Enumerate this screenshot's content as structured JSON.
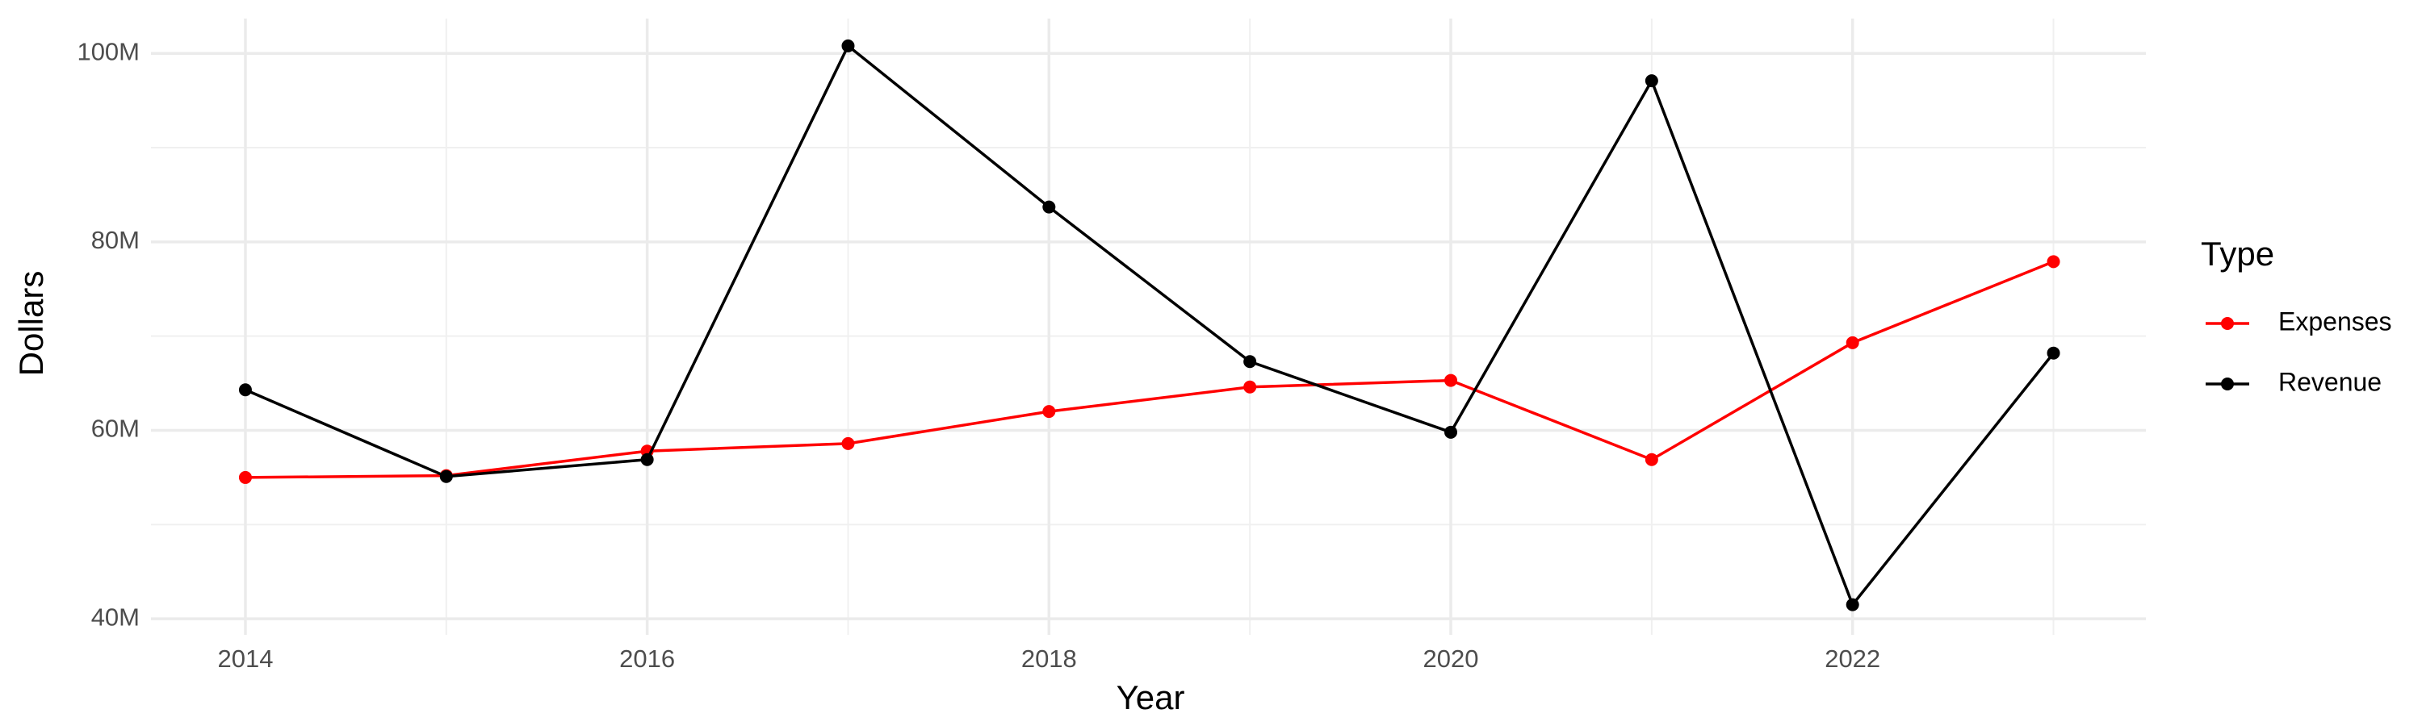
{
  "chart_data": {
    "type": "line",
    "x_label": "Year",
    "y_label": "Dollars",
    "legend_title": "Type",
    "x": [
      2014,
      2015,
      2016,
      2017,
      2018,
      2019,
      2020,
      2021,
      2022,
      2023
    ],
    "series": [
      {
        "name": "Expenses",
        "color": "#ff0000",
        "values": [
          55000000,
          55200000,
          57800000,
          58600000,
          62000000,
          64600000,
          65300000,
          56900000,
          69300000,
          77900000
        ]
      },
      {
        "name": "Revenue",
        "color": "#000000",
        "values": [
          64300000,
          55100000,
          56900000,
          100800000,
          83700000,
          67300000,
          59800000,
          97100000,
          41500000,
          68200000
        ]
      }
    ],
    "xlim": [
      2013.53,
      2023.46
    ],
    "xticks": [
      2014,
      2016,
      2018,
      2020,
      2022
    ],
    "ylim": [
      38300000,
      103700000
    ],
    "yticks": [
      {
        "value": 40000000,
        "label": "40M"
      },
      {
        "value": 60000000,
        "label": "60M"
      },
      {
        "value": 80000000,
        "label": "80M"
      },
      {
        "value": 100000000,
        "label": "100M"
      }
    ],
    "grid": true,
    "legend": "right"
  }
}
